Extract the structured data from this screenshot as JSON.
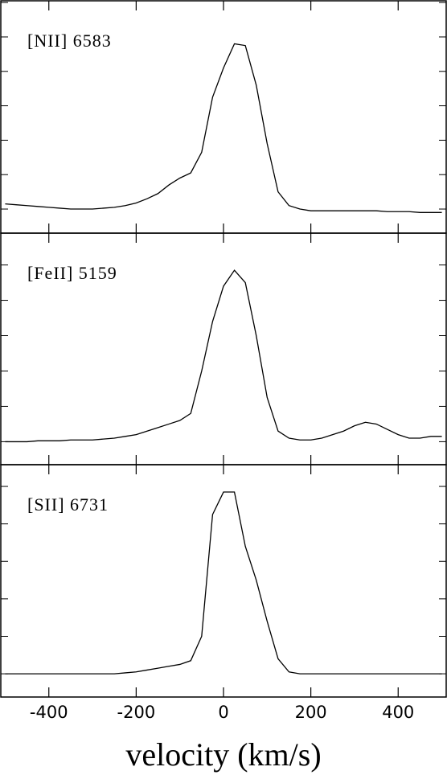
{
  "chart_data": [
    {
      "type": "line",
      "annotation": "[NII] 6583",
      "color": "#000000",
      "x": [
        -500,
        -475,
        -450,
        -425,
        -400,
        -375,
        -350,
        -325,
        -300,
        -275,
        -250,
        -225,
        -200,
        -175,
        -150,
        -125,
        -100,
        -75,
        -50,
        -25,
        0,
        25,
        50,
        75,
        100,
        125,
        150,
        175,
        200,
        225,
        250,
        275,
        300,
        325,
        350,
        375,
        400,
        425,
        450,
        475,
        500
      ],
      "values": [
        0.03,
        0.025,
        0.02,
        0.015,
        0.01,
        0.005,
        0,
        0,
        0,
        0.005,
        0.01,
        0.02,
        0.035,
        0.06,
        0.09,
        0.14,
        0.18,
        0.21,
        0.33,
        0.65,
        0.82,
        0.96,
        0.95,
        0.72,
        0.38,
        0.1,
        0.02,
        0,
        -0.01,
        -0.01,
        -0.01,
        -0.01,
        -0.01,
        -0.01,
        -0.01,
        -0.015,
        -0.015,
        -0.015,
        -0.02,
        -0.02,
        -0.02
      ],
      "xlim": [
        -510,
        510
      ],
      "ylim": [
        -0.14,
        1.21
      ],
      "xticks": [
        -400,
        -200,
        0,
        200,
        400
      ],
      "yticks": [
        0,
        0.2,
        0.4,
        0.6,
        0.8,
        1.0,
        1.2
      ]
    },
    {
      "type": "line",
      "annotation": "[FeII] 5159",
      "color": "#000000",
      "x": [
        -500,
        -475,
        -450,
        -425,
        -400,
        -375,
        -350,
        -325,
        -300,
        -275,
        -250,
        -225,
        -200,
        -175,
        -150,
        -125,
        -100,
        -75,
        -50,
        -25,
        0,
        25,
        50,
        75,
        100,
        125,
        150,
        175,
        200,
        225,
        250,
        275,
        300,
        325,
        350,
        375,
        400,
        425,
        450,
        475,
        500
      ],
      "values": [
        0,
        0,
        0,
        0.005,
        0.005,
        0.005,
        0.01,
        0.01,
        0.01,
        0.015,
        0.02,
        0.03,
        0.04,
        0.06,
        0.08,
        0.1,
        0.12,
        0.16,
        0.4,
        0.68,
        0.88,
        0.97,
        0.9,
        0.6,
        0.25,
        0.06,
        0.02,
        0.01,
        0.01,
        0.02,
        0.04,
        0.06,
        0.09,
        0.11,
        0.1,
        0.07,
        0.04,
        0.02,
        0.02,
        0.03,
        0.03
      ],
      "xlim": [
        -510,
        510
      ],
      "ylim": [
        -0.13,
        1.18
      ],
      "xticks": [
        -400,
        -200,
        0,
        200,
        400
      ],
      "yticks": [
        0,
        0.2,
        0.4,
        0.6,
        0.8,
        1.0
      ]
    },
    {
      "type": "line",
      "annotation": "[SII] 6731",
      "color": "#000000",
      "xlabel": "velocity (km/s)",
      "tick_labels": true,
      "x": [
        -500,
        -475,
        -450,
        -425,
        -400,
        -375,
        -350,
        -325,
        -300,
        -275,
        -250,
        -225,
        -200,
        -175,
        -150,
        -125,
        -100,
        -75,
        -50,
        -25,
        0,
        25,
        50,
        75,
        100,
        125,
        150,
        175,
        200,
        225,
        250,
        275,
        300,
        325,
        350,
        375,
        400,
        425,
        450,
        475,
        500
      ],
      "values": [
        0,
        0,
        0,
        0,
        0,
        0,
        0,
        0,
        0,
        0,
        0,
        0.005,
        0.01,
        0.02,
        0.03,
        0.04,
        0.05,
        0.07,
        0.2,
        0.85,
        0.97,
        0.97,
        0.68,
        0.5,
        0.28,
        0.08,
        0.01,
        0,
        0,
        0,
        0,
        0,
        0,
        0,
        0,
        0,
        0,
        0,
        0,
        0,
        0
      ],
      "xlim": [
        -510,
        510
      ],
      "ylim": [
        -0.124,
        1.116
      ],
      "xticks": [
        -400,
        -200,
        0,
        200,
        400
      ],
      "yticks": [
        0,
        0.2,
        0.4,
        0.6,
        0.8,
        1.0
      ]
    }
  ]
}
